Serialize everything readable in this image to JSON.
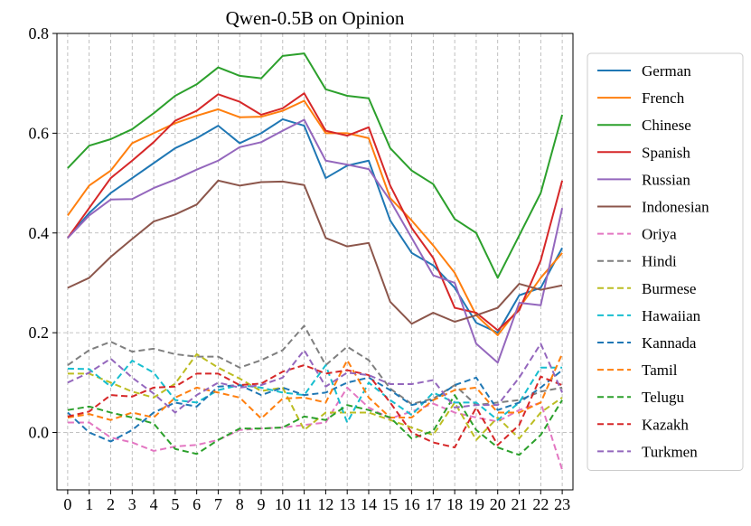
{
  "chart_data": {
    "type": "line",
    "title": "Qwen-0.5B on Opinion",
    "xlabel": "",
    "ylabel": "",
    "x": [
      0,
      1,
      2,
      3,
      4,
      5,
      6,
      7,
      8,
      9,
      10,
      11,
      12,
      13,
      14,
      15,
      16,
      17,
      18,
      19,
      20,
      21,
      22,
      23
    ],
    "xlim": [
      -0.5,
      23.5
    ],
    "ylim": [
      -0.115,
      0.8
    ],
    "yticks": [
      0.0,
      0.2,
      0.4,
      0.6,
      0.8
    ],
    "yticklabels": [
      "0.0",
      "0.2",
      "0.4",
      "0.6",
      "0.8"
    ],
    "grid": true,
    "legend_position": "right",
    "series": [
      {
        "name": "German",
        "color": "#1f77b4",
        "dash": "solid",
        "values": [
          0.39,
          0.44,
          0.48,
          0.51,
          0.54,
          0.57,
          0.59,
          0.615,
          0.58,
          0.6,
          0.628,
          0.615,
          0.51,
          0.535,
          0.545,
          0.425,
          0.36,
          0.335,
          0.29,
          0.22,
          0.2,
          0.275,
          0.29,
          0.37
        ]
      },
      {
        "name": "French",
        "color": "#ff7f0e",
        "dash": "solid",
        "values": [
          0.435,
          0.495,
          0.525,
          0.58,
          0.6,
          0.62,
          0.635,
          0.648,
          0.632,
          0.633,
          0.645,
          0.665,
          0.6,
          0.6,
          0.59,
          0.47,
          0.425,
          0.375,
          0.32,
          0.235,
          0.195,
          0.25,
          0.31,
          0.36
        ]
      },
      {
        "name": "Chinese",
        "color": "#2ca02c",
        "dash": "solid",
        "values": [
          0.53,
          0.575,
          0.588,
          0.608,
          0.64,
          0.675,
          0.698,
          0.732,
          0.715,
          0.71,
          0.755,
          0.76,
          0.688,
          0.675,
          0.67,
          0.57,
          0.525,
          0.498,
          0.428,
          0.4,
          0.31,
          0.395,
          0.48,
          0.637
        ]
      },
      {
        "name": "Spanish",
        "color": "#d62728",
        "dash": "solid",
        "values": [
          0.39,
          0.45,
          0.51,
          0.545,
          0.582,
          0.625,
          0.645,
          0.678,
          0.663,
          0.637,
          0.65,
          0.68,
          0.605,
          0.595,
          0.612,
          0.495,
          0.41,
          0.35,
          0.25,
          0.24,
          0.205,
          0.245,
          0.345,
          0.505
        ]
      },
      {
        "name": "Russian",
        "color": "#9467bd",
        "dash": "solid",
        "values": [
          0.39,
          0.435,
          0.467,
          0.468,
          0.49,
          0.507,
          0.527,
          0.545,
          0.572,
          0.582,
          0.605,
          0.627,
          0.545,
          0.537,
          0.528,
          0.465,
          0.39,
          0.315,
          0.3,
          0.178,
          0.14,
          0.26,
          0.255,
          0.45
        ]
      },
      {
        "name": "Indonesian",
        "color": "#8c564b",
        "dash": "solid",
        "values": [
          0.29,
          0.31,
          0.352,
          0.388,
          0.423,
          0.437,
          0.457,
          0.505,
          0.495,
          0.502,
          0.503,
          0.496,
          0.39,
          0.373,
          0.38,
          0.262,
          0.218,
          0.24,
          0.222,
          0.235,
          0.25,
          0.298,
          0.286,
          0.295
        ]
      },
      {
        "name": "Oriya",
        "color": "#e377c2",
        "dash": "dashed",
        "values": [
          0.02,
          0.02,
          -0.01,
          -0.02,
          -0.037,
          -0.028,
          -0.025,
          -0.015,
          0.005,
          0.008,
          0.01,
          0.015,
          0.02,
          0.09,
          0.05,
          0.028,
          0.042,
          0.058,
          0.04,
          0.03,
          0.022,
          0.045,
          0.06,
          -0.075
        ]
      },
      {
        "name": "Hindi",
        "color": "#7f7f7f",
        "dash": "dashed",
        "values": [
          0.135,
          0.165,
          0.182,
          0.162,
          0.168,
          0.157,
          0.152,
          0.152,
          0.13,
          0.145,
          0.165,
          0.214,
          0.135,
          0.172,
          0.145,
          0.088,
          0.057,
          0.068,
          0.095,
          0.055,
          0.06,
          0.065,
          0.082,
          0.09
        ]
      },
      {
        "name": "Burmese",
        "color": "#bcbd22",
        "dash": "dashed",
        "values": [
          0.118,
          0.118,
          0.1,
          0.082,
          0.07,
          0.098,
          0.157,
          0.13,
          0.108,
          0.083,
          0.09,
          0.005,
          0.04,
          0.04,
          0.04,
          0.025,
          0.01,
          -0.005,
          0.06,
          -0.015,
          0.03,
          -0.012,
          0.04,
          0.07
        ]
      },
      {
        "name": "Hawaiian",
        "color": "#17becf",
        "dash": "dashed",
        "values": [
          0.128,
          0.127,
          0.092,
          0.144,
          0.12,
          0.065,
          0.06,
          0.085,
          0.095,
          0.09,
          0.08,
          0.075,
          0.135,
          0.02,
          0.1,
          0.065,
          0.035,
          0.08,
          0.06,
          0.06,
          0.025,
          0.06,
          0.13,
          0.13
        ]
      },
      {
        "name": "Kannada",
        "color": "#1f77b4",
        "dash": "dashed",
        "values": [
          0.04,
          0.0,
          -0.018,
          0.005,
          0.04,
          0.06,
          0.052,
          0.092,
          0.095,
          0.075,
          0.09,
          0.075,
          0.08,
          0.1,
          0.11,
          0.085,
          0.055,
          0.065,
          0.095,
          0.11,
          0.045,
          0.06,
          0.09,
          0.125
        ]
      },
      {
        "name": "Tamil",
        "color": "#ff7f0e",
        "dash": "dashed",
        "values": [
          0.03,
          0.037,
          0.025,
          0.04,
          0.03,
          0.07,
          0.09,
          0.08,
          0.07,
          0.028,
          0.068,
          0.07,
          0.06,
          0.145,
          0.07,
          0.03,
          0.03,
          0.065,
          0.085,
          0.09,
          0.04,
          0.04,
          0.06,
          0.158
        ]
      },
      {
        "name": "Telugu",
        "color": "#2ca02c",
        "dash": "dashed",
        "values": [
          0.045,
          0.052,
          0.04,
          0.03,
          0.018,
          -0.033,
          -0.043,
          -0.015,
          0.008,
          0.008,
          0.01,
          0.032,
          0.025,
          0.055,
          0.045,
          0.03,
          -0.012,
          0.003,
          0.075,
          0.005,
          -0.03,
          -0.045,
          -0.005,
          0.065
        ]
      },
      {
        "name": "Kazakh",
        "color": "#d62728",
        "dash": "dashed",
        "values": [
          0.032,
          0.042,
          0.075,
          0.072,
          0.09,
          0.092,
          0.118,
          0.118,
          0.095,
          0.098,
          0.122,
          0.135,
          0.118,
          0.125,
          0.115,
          0.06,
          0.0,
          -0.02,
          -0.03,
          0.05,
          -0.025,
          0.015,
          0.112,
          0.095
        ]
      },
      {
        "name": "Turkmen",
        "color": "#9467bd",
        "dash": "dashed",
        "values": [
          0.1,
          0.12,
          0.148,
          0.11,
          0.078,
          0.04,
          0.075,
          0.1,
          0.09,
          0.095,
          0.11,
          0.165,
          0.092,
          0.12,
          0.115,
          0.097,
          0.097,
          0.105,
          0.05,
          0.055,
          0.055,
          0.11,
          0.178,
          0.08
        ]
      }
    ]
  }
}
